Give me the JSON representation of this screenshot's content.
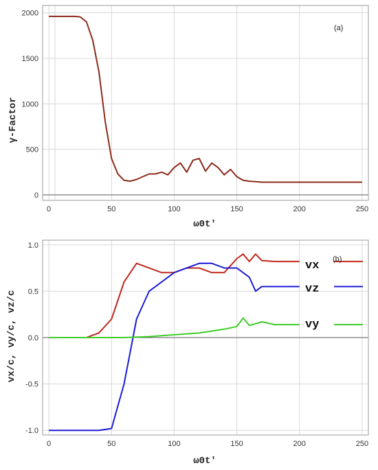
{
  "chart_data": [
    {
      "type": "line",
      "panel_label": "(a)",
      "xlabel": "ω0t'",
      "ylabel": "γ-Factor",
      "xlim": [
        -5,
        255
      ],
      "ylim": [
        -60,
        2080
      ],
      "xticks": [
        0,
        50,
        100,
        150,
        200,
        250
      ],
      "yticks": [
        0,
        500,
        1000,
        1500,
        2000
      ],
      "grid": true,
      "series": [
        {
          "color": "#8b2a1a",
          "x": [
            0,
            20,
            25,
            30,
            35,
            40,
            45,
            50,
            55,
            60,
            65,
            70,
            75,
            80,
            85,
            90,
            95,
            100,
            105,
            110,
            115,
            120,
            125,
            130,
            135,
            140,
            145,
            150,
            155,
            160,
            165,
            170,
            180,
            200,
            250
          ],
          "y": [
            1960,
            1960,
            1955,
            1900,
            1700,
            1350,
            800,
            400,
            230,
            160,
            150,
            170,
            200,
            230,
            230,
            250,
            220,
            300,
            350,
            250,
            380,
            400,
            260,
            350,
            300,
            220,
            280,
            200,
            160,
            150,
            145,
            140,
            140,
            140,
            140
          ]
        }
      ]
    },
    {
      "type": "line",
      "panel_label": "(b)",
      "xlabel": "ω0t'",
      "ylabel": "vx/c,  vy/c,  vz/c",
      "xlim": [
        -5,
        255
      ],
      "ylim": [
        -1.05,
        1.05
      ],
      "xticks": [
        0,
        50,
        100,
        150,
        200,
        250
      ],
      "yticks": [
        -1.0,
        -0.5,
        0.0,
        0.5,
        1.0
      ],
      "grid": true,
      "series": [
        {
          "name": "vx",
          "color": "#c0261b",
          "x": [
            0,
            30,
            40,
            50,
            60,
            70,
            80,
            90,
            100,
            110,
            120,
            130,
            140,
            150,
            155,
            160,
            165,
            170,
            180,
            200
          ],
          "y": [
            0.0,
            0.0,
            0.05,
            0.2,
            0.6,
            0.8,
            0.75,
            0.7,
            0.7,
            0.75,
            0.75,
            0.7,
            0.7,
            0.85,
            0.9,
            0.82,
            0.9,
            0.83,
            0.82,
            0.82
          ]
        },
        {
          "name": "vz",
          "color": "#1a1ad6",
          "x": [
            0,
            40,
            50,
            60,
            70,
            80,
            90,
            100,
            110,
            120,
            130,
            140,
            150,
            155,
            160,
            165,
            170,
            180,
            200
          ],
          "y": [
            -1.0,
            -1.0,
            -0.98,
            -0.5,
            0.2,
            0.5,
            0.6,
            0.7,
            0.75,
            0.8,
            0.8,
            0.75,
            0.75,
            0.7,
            0.65,
            0.5,
            0.55,
            0.55,
            0.55
          ]
        },
        {
          "name": "vy",
          "color": "#3dcc26",
          "x": [
            0,
            60,
            80,
            100,
            120,
            130,
            140,
            150,
            155,
            160,
            170,
            180,
            200
          ],
          "y": [
            0.0,
            0.0,
            0.01,
            0.03,
            0.05,
            0.07,
            0.09,
            0.12,
            0.21,
            0.13,
            0.17,
            0.14,
            0.14
          ]
        }
      ]
    }
  ]
}
